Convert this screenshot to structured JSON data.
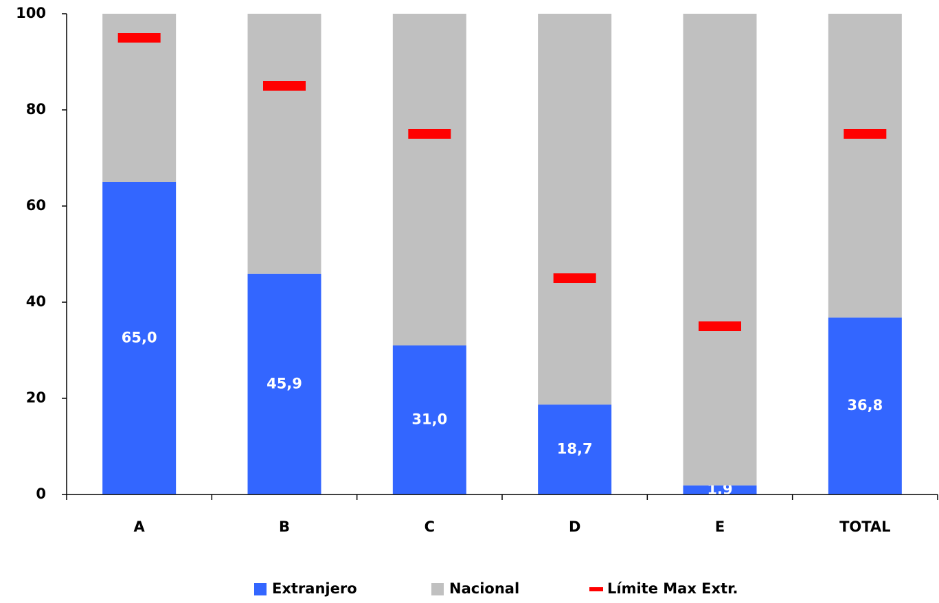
{
  "chart_data": {
    "type": "stacked_bar",
    "categories": [
      "A",
      "B",
      "C",
      "D",
      "E",
      "TOTAL"
    ],
    "series": [
      {
        "name": "Extranjero",
        "color": "#3366ff",
        "type": "bar",
        "values": [
          65.0,
          45.9,
          31.0,
          18.7,
          1.9,
          36.8
        ],
        "value_labels": [
          "65,0",
          "45,9",
          "31,0",
          "18,7",
          "1,9",
          "36,8"
        ]
      },
      {
        "name": "Nacional",
        "color": "#c0c0c0",
        "type": "bar",
        "values": [
          35.0,
          54.1,
          69.0,
          81.3,
          98.1,
          63.2
        ]
      },
      {
        "name": "Límite Max Extr.",
        "color": "#ff0000",
        "type": "marker",
        "values": [
          95,
          85,
          75,
          45,
          35,
          75
        ]
      }
    ],
    "ylim": [
      0,
      100
    ],
    "yticks": [
      0,
      20,
      40,
      60,
      80,
      100
    ],
    "legend": "bottom"
  }
}
